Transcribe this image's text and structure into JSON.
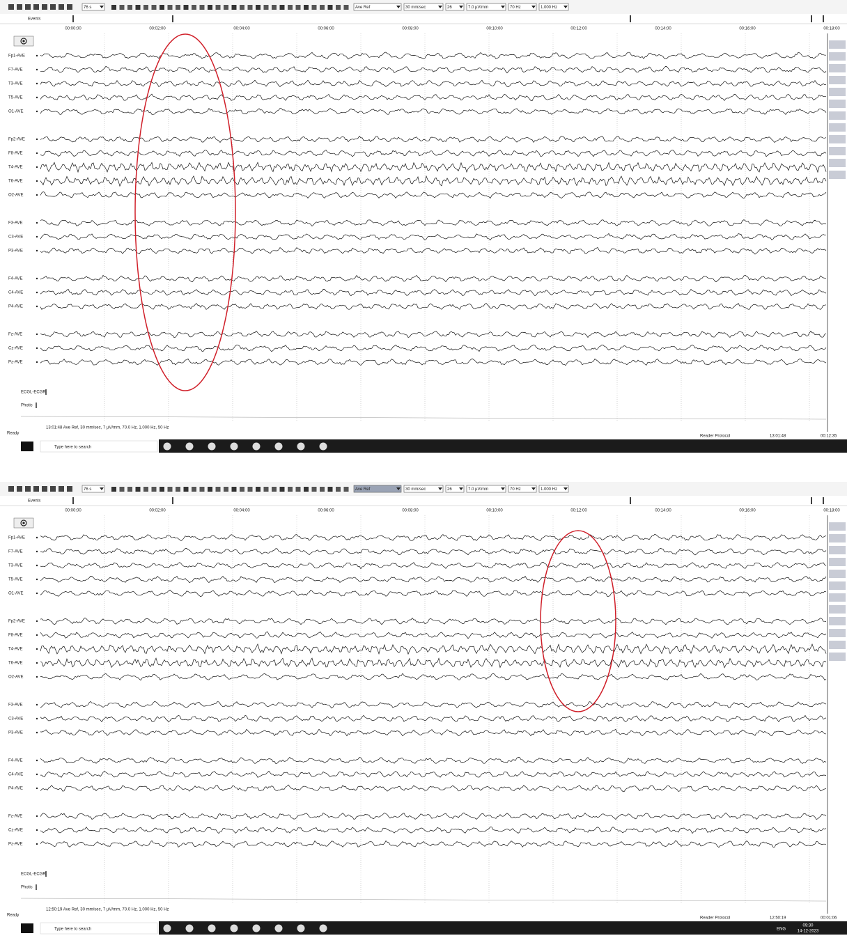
{
  "panels": [
    {
      "toolbar": {
        "zoom": "76 s",
        "montage": "Ave Ref",
        "speed": "30 mm/sec",
        "channels": "26",
        "sensitivity": "7.0 µV/mm",
        "high_filter": "70 Hz",
        "low_filter": "1.000 Hz"
      },
      "events_label": "Events",
      "time_ticks": [
        "00:00:00",
        "00:02:00",
        "00:04:00",
        "00:06:00",
        "00:08:00",
        "00:10:00",
        "00:12:00",
        "00:14:00",
        "00:16:00",
        "00:18:00"
      ],
      "channel_groups": [
        [
          "Fp1-AVE",
          "F7-AVE",
          "T3-AVE",
          "T5-AVE",
          "O1-AVE"
        ],
        [
          "Fp2-AVE",
          "F8-AVE",
          "T4-AVE",
          "T6-AVE",
          "O2-AVE"
        ],
        [
          "F3-AVE",
          "C3-AVE",
          "P3-AVE"
        ],
        [
          "F4-AVE",
          "C4-AVE",
          "P4-AVE"
        ],
        [
          "Fz-AVE",
          "Cz-AVE",
          "Pz-AVE"
        ]
      ],
      "extra_channels": [
        "ECGL-ECGR",
        "Photic"
      ],
      "status_settings": "13:01:48 Ave Ref, 30 mm/sec, 7 µV/mm, 70.0 Hz, 1.000 Hz, 50 Hz",
      "status": "Ready",
      "reader_protocol": "Reader Protocol",
      "clock": "13:01:48",
      "elapsed": "00:12:35",
      "search_placeholder": "Type here to search"
    },
    {
      "toolbar": {
        "zoom": "76 s",
        "montage": "Ave Ref",
        "speed": "30 mm/sec",
        "channels": "26",
        "sensitivity": "7.0 µV/mm",
        "high_filter": "70 Hz",
        "low_filter": "1.000 Hz"
      },
      "events_label": "Events",
      "time_ticks": [
        "00:00:00",
        "00:02:00",
        "00:04:00",
        "00:06:00",
        "00:08:00",
        "00:10:00",
        "00:12:00",
        "00:14:00",
        "00:16:00",
        "00:18:00"
      ],
      "channel_groups": [
        [
          "Fp1-AVE",
          "F7-AVE",
          "T3-AVE",
          "T5-AVE",
          "O1-AVE"
        ],
        [
          "Fp2-AVE",
          "F8-AVE",
          "T4-AVE",
          "T6-AVE",
          "O2-AVE"
        ],
        [
          "F3-AVE",
          "C3-AVE",
          "P3-AVE"
        ],
        [
          "F4-AVE",
          "C4-AVE",
          "P4-AVE"
        ],
        [
          "Fz-AVE",
          "Cz-AVE",
          "Pz-AVE"
        ]
      ],
      "extra_channels": [
        "ECGL-ECGR",
        "Photic"
      ],
      "status_settings": "12:50:19 Ave Ref, 30 mm/sec, 7 µV/mm, 70.0 Hz, 1.000 Hz, 50 Hz",
      "status": "Ready",
      "reader_protocol": "Reader Protocol",
      "clock": "12:50:19",
      "elapsed": "00:01:06",
      "search_placeholder": "Type here to search",
      "tray": {
        "language": "ENG",
        "time": "09:30",
        "date": "14-12-2023"
      }
    }
  ]
}
